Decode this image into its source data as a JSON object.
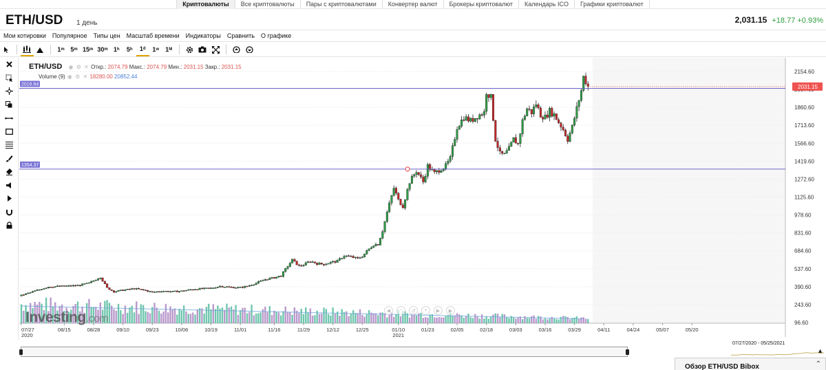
{
  "nav": {
    "tabs": [
      {
        "label": "Криптовалюты",
        "active": true
      },
      {
        "label": "Все криптовалюты"
      },
      {
        "label": "Пары с криптовалютами"
      },
      {
        "label": "Конвертер валют"
      },
      {
        "label": "Брокеры криптовалют"
      },
      {
        "label": "Календарь ICO"
      },
      {
        "label": "Графики криптовалют"
      }
    ]
  },
  "header": {
    "title": "ETH/USD",
    "timeframe": "1 день",
    "last_price": "2,031.15",
    "change": "+18.77",
    "change_pct": "+0.93%"
  },
  "menu": [
    "Мои котировки",
    "Популярное",
    "Типы цен",
    "Масштаб времени",
    "Индикаторы",
    "Сравнить",
    "О графике"
  ],
  "toolbar": {
    "intervals": [
      "1",
      "5",
      "15",
      "30",
      "1",
      "5",
      "1",
      "1",
      "1"
    ],
    "interval_units": [
      "m",
      "m",
      "m",
      "m",
      "h",
      "h",
      "d",
      "w",
      "M"
    ],
    "active_interval_index": 6,
    "icons": [
      "cursor-icon",
      "candles-icon",
      "mountain-icon",
      "settings-icon",
      "camera-icon",
      "fullscreen-icon",
      "cloud-upload-icon",
      "cloud-download-icon"
    ]
  },
  "left_tools": [
    "close-icon",
    "select-icon",
    "crosshair-icon",
    "copy-icon",
    "line-icon",
    "rectangle-icon",
    "fibonacci-icon",
    "brush-icon",
    "eraser-icon",
    "speaker-icon",
    "arrow-icon",
    "magnet-icon",
    "lock-icon"
  ],
  "legend": {
    "symbol": "ETH/USD",
    "open_label": "Откр.:",
    "open": "2074.79",
    "high_label": "Макс.:",
    "high": "2074.79",
    "low_label": "Мин.:",
    "low": "2031.15",
    "close_label": "Закр.:",
    "close": "2031.15",
    "volume_label": "Volume (9)",
    "volume_1": "18280.00",
    "volume_2": "20852.44"
  },
  "hlines": {
    "upper_label": "2016.64",
    "upper_value": 2016.64,
    "lower_label": "1354.37",
    "lower_value": 1354.37,
    "price_tag": "2031.15"
  },
  "watermark": {
    "brand": "Investing",
    "suffix": ".com"
  },
  "range_label": "07/27/2020 - 05/25/2021",
  "overview_title": "Обзор ETH/USD Bibox",
  "colors": {
    "up": "#2e9d46",
    "down": "#c62828",
    "hline": "#6b63c9",
    "price_tag": "#ef5350",
    "vol_up": "#4bb89a",
    "vol_down": "#a77fbf"
  },
  "chart_data": {
    "type": "candlestick",
    "y_ticks": [
      2154.6,
      2007.6,
      1860.6,
      1713.6,
      1566.6,
      1419.6,
      1272.6,
      1125.6,
      978.6,
      831.6,
      684.6,
      537.6,
      390.6,
      243.6,
      96.6
    ],
    "x_labels": [
      {
        "label": "07/27",
        "sub": "2020",
        "day": 0
      },
      {
        "label": "08/15",
        "day": 19
      },
      {
        "label": "08/28",
        "day": 32
      },
      {
        "label": "09/10",
        "day": 45
      },
      {
        "label": "09/23",
        "day": 58
      },
      {
        "label": "10/06",
        "day": 71
      },
      {
        "label": "10/19",
        "day": 84
      },
      {
        "label": "11/01",
        "day": 97
      },
      {
        "label": "11/16",
        "day": 112
      },
      {
        "label": "11/29",
        "day": 125
      },
      {
        "label": "12/12",
        "day": 138
      },
      {
        "label": "12/25",
        "day": 151
      },
      {
        "label": "01/10",
        "sub": "2021",
        "day": 167
      },
      {
        "label": "01/23",
        "day": 180
      },
      {
        "label": "02/05",
        "day": 193
      },
      {
        "label": "02/18",
        "day": 206
      },
      {
        "label": "03/03",
        "day": 219
      },
      {
        "label": "03/16",
        "day": 232
      },
      {
        "label": "03/29",
        "day": 245
      },
      {
        "label": "04/11",
        "day": 258
      },
      {
        "label": "04/24",
        "day": 271
      },
      {
        "label": "05/07",
        "day": 284
      },
      {
        "label": "05/20",
        "day": 297
      }
    ],
    "x_range_days": [
      0,
      302
    ],
    "y_range": [
      0,
      2250
    ],
    "last_day": 251,
    "key_closes": [
      [
        0,
        320
      ],
      [
        6,
        355
      ],
      [
        12,
        390
      ],
      [
        19,
        395
      ],
      [
        25,
        400
      ],
      [
        30,
        420
      ],
      [
        32,
        440
      ],
      [
        35,
        470
      ],
      [
        38,
        380
      ],
      [
        41,
        350
      ],
      [
        45,
        362
      ],
      [
        50,
        375
      ],
      [
        55,
        360
      ],
      [
        58,
        345
      ],
      [
        62,
        355
      ],
      [
        67,
        350
      ],
      [
        71,
        355
      ],
      [
        76,
        370
      ],
      [
        81,
        375
      ],
      [
        84,
        378
      ],
      [
        88,
        395
      ],
      [
        93,
        385
      ],
      [
        97,
        384
      ],
      [
        100,
        395
      ],
      [
        104,
        420
      ],
      [
        108,
        450
      ],
      [
        112,
        465
      ],
      [
        115,
        480
      ],
      [
        118,
        560
      ],
      [
        120,
        610
      ],
      [
        123,
        560
      ],
      [
        125,
        570
      ],
      [
        128,
        600
      ],
      [
        131,
        580
      ],
      [
        134,
        575
      ],
      [
        137,
        590
      ],
      [
        140,
        600
      ],
      [
        143,
        645
      ],
      [
        146,
        635
      ],
      [
        149,
        620
      ],
      [
        151,
        640
      ],
      [
        154,
        700
      ],
      [
        156,
        735
      ],
      [
        158,
        740
      ],
      [
        160,
        850
      ],
      [
        162,
        1000
      ],
      [
        165,
        1200
      ],
      [
        167,
        1100
      ],
      [
        169,
        1050
      ],
      [
        172,
        1250
      ],
      [
        175,
        1340
      ],
      [
        178,
        1250
      ],
      [
        180,
        1380
      ],
      [
        183,
        1320
      ],
      [
        186,
        1360
      ],
      [
        188,
        1380
      ],
      [
        190,
        1440
      ],
      [
        193,
        1700
      ],
      [
        196,
        1780
      ],
      [
        199,
        1750
      ],
      [
        202,
        1790
      ],
      [
        205,
        1820
      ],
      [
        206,
        1990
      ],
      [
        208,
        1940
      ],
      [
        210,
        1600
      ],
      [
        212,
        1480
      ],
      [
        214,
        1470
      ],
      [
        216,
        1520
      ],
      [
        218,
        1600
      ],
      [
        220,
        1560
      ],
      [
        222,
        1750
      ],
      [
        224,
        1850
      ],
      [
        226,
        1820
      ],
      [
        228,
        1890
      ],
      [
        230,
        1800
      ],
      [
        232,
        1780
      ],
      [
        234,
        1830
      ],
      [
        236,
        1800
      ],
      [
        238,
        1740
      ],
      [
        240,
        1680
      ],
      [
        242,
        1600
      ],
      [
        244,
        1700
      ],
      [
        246,
        1850
      ],
      [
        248,
        2000
      ],
      [
        249,
        2110
      ],
      [
        250,
        2075
      ],
      [
        251,
        2031
      ]
    ],
    "volume_pattern": "declining",
    "volume_range": [
      0,
      60
    ]
  }
}
